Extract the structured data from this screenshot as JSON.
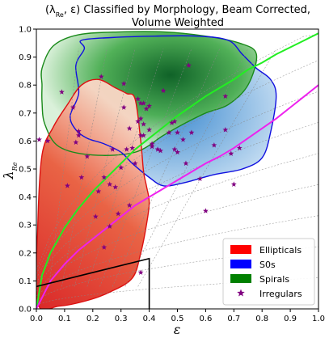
{
  "chart_data": {
    "type": "scatter",
    "title_lines": [
      "(λ_Re, ε) Classified by Morphology, Beam Corrected,",
      "Volume Weighted"
    ],
    "xlabel": "ε",
    "ylabel": "λ_Re",
    "xlim": [
      0.0,
      1.0
    ],
    "ylim": [
      0.0,
      1.0
    ],
    "xticks": [
      "0.0",
      "0.1",
      "0.2",
      "0.3",
      "0.4",
      "0.5",
      "0.6",
      "0.7",
      "0.8",
      "0.9",
      "1.0"
    ],
    "yticks": [
      "0.0",
      "0.1",
      "0.2",
      "0.3",
      "0.4",
      "0.5",
      "0.6",
      "0.7",
      "0.8",
      "0.9",
      "1.0"
    ],
    "legend_position": "lower-right",
    "legend": [
      {
        "label": "Ellipticals",
        "color": "#ff0000",
        "marker": "patch"
      },
      {
        "label": "S0s",
        "color": "#0000ff",
        "marker": "patch"
      },
      {
        "label": "Spirals",
        "color": "#008000",
        "marker": "patch"
      },
      {
        "label": "Irregulars",
        "color": "#800080",
        "marker": "star"
      }
    ],
    "colors": {
      "ellipticals": "#cc1a1a",
      "s0s": "#1f6fb4",
      "spirals": "#147a2c",
      "irregulars": "#800080",
      "green_curve": "#22ee22",
      "magenta_curve": "#ee22ee",
      "slow_rotator_box": "#000000"
    },
    "irregulars": [
      [
        0.01,
        0.605
      ],
      [
        0.09,
        0.775
      ],
      [
        0.11,
        0.44
      ],
      [
        0.13,
        0.72
      ],
      [
        0.14,
        0.595
      ],
      [
        0.15,
        0.635
      ],
      [
        0.15,
        0.62
      ],
      [
        0.18,
        0.545
      ],
      [
        0.16,
        0.47
      ],
      [
        0.21,
        0.33
      ],
      [
        0.22,
        0.42
      ],
      [
        0.24,
        0.47
      ],
      [
        0.23,
        0.83
      ],
      [
        0.24,
        0.22
      ],
      [
        0.26,
        0.295
      ],
      [
        0.26,
        0.445
      ],
      [
        0.27,
        0.57
      ],
      [
        0.28,
        0.435
      ],
      [
        0.29,
        0.34
      ],
      [
        0.3,
        0.505
      ],
      [
        0.31,
        0.805
      ],
      [
        0.31,
        0.72
      ],
      [
        0.32,
        0.57
      ],
      [
        0.33,
        0.37
      ],
      [
        0.33,
        0.645
      ],
      [
        0.34,
        0.575
      ],
      [
        0.35,
        0.52
      ],
      [
        0.36,
        0.75
      ],
      [
        0.36,
        0.67
      ],
      [
        0.37,
        0.735
      ],
      [
        0.37,
        0.68
      ],
      [
        0.38,
        0.66
      ],
      [
        0.38,
        0.62
      ],
      [
        0.38,
        0.735
      ],
      [
        0.37,
        0.62
      ],
      [
        0.39,
        0.715
      ],
      [
        0.4,
        0.725
      ],
      [
        0.4,
        0.64
      ],
      [
        0.41,
        0.58
      ],
      [
        0.43,
        0.57
      ],
      [
        0.44,
        0.565
      ],
      [
        0.45,
        0.78
      ],
      [
        0.47,
        0.63
      ],
      [
        0.48,
        0.665
      ],
      [
        0.49,
        0.67
      ],
      [
        0.49,
        0.57
      ],
      [
        0.5,
        0.56
      ],
      [
        0.5,
        0.63
      ],
      [
        0.52,
        0.605
      ],
      [
        0.53,
        0.52
      ],
      [
        0.54,
        0.87
      ],
      [
        0.55,
        0.63
      ],
      [
        0.58,
        0.465
      ],
      [
        0.6,
        0.35
      ],
      [
        0.63,
        0.585
      ],
      [
        0.67,
        0.76
      ],
      [
        0.67,
        0.64
      ],
      [
        0.69,
        0.555
      ],
      [
        0.7,
        0.445
      ],
      [
        0.72,
        0.575
      ],
      [
        0.41,
        0.59
      ],
      [
        0.37,
        0.13
      ],
      [
        0.04,
        0.6
      ]
    ],
    "spirals_contour": [
      [
        0.02,
        0.8
      ],
      [
        0.02,
        0.86
      ],
      [
        0.06,
        0.94
      ],
      [
        0.15,
        0.98
      ],
      [
        0.3,
        0.99
      ],
      [
        0.45,
        0.99
      ],
      [
        0.6,
        0.975
      ],
      [
        0.72,
        0.95
      ],
      [
        0.78,
        0.91
      ],
      [
        0.75,
        0.8
      ],
      [
        0.68,
        0.73
      ],
      [
        0.6,
        0.7
      ],
      [
        0.52,
        0.66
      ],
      [
        0.45,
        0.62
      ],
      [
        0.35,
        0.56
      ],
      [
        0.2,
        0.55
      ],
      [
        0.08,
        0.58
      ],
      [
        0.03,
        0.66
      ],
      [
        0.02,
        0.74
      ]
    ],
    "s0s_contour": [
      [
        0.12,
        0.69
      ],
      [
        0.15,
        0.77
      ],
      [
        0.14,
        0.87
      ],
      [
        0.17,
        0.93
      ],
      [
        0.16,
        0.96
      ],
      [
        0.27,
        0.97
      ],
      [
        0.42,
        0.975
      ],
      [
        0.57,
        0.975
      ],
      [
        0.68,
        0.96
      ],
      [
        0.73,
        0.91
      ],
      [
        0.78,
        0.86
      ],
      [
        0.83,
        0.82
      ],
      [
        0.85,
        0.76
      ],
      [
        0.83,
        0.63
      ],
      [
        0.8,
        0.54
      ],
      [
        0.73,
        0.5
      ],
      [
        0.63,
        0.48
      ],
      [
        0.52,
        0.45
      ],
      [
        0.45,
        0.44
      ],
      [
        0.4,
        0.47
      ],
      [
        0.34,
        0.52
      ],
      [
        0.3,
        0.56
      ],
      [
        0.24,
        0.59
      ],
      [
        0.18,
        0.61
      ],
      [
        0.14,
        0.64
      ]
    ],
    "ellipticals_contour": [
      [
        0.005,
        0.02
      ],
      [
        0.005,
        0.3
      ],
      [
        0.02,
        0.55
      ],
      [
        0.06,
        0.65
      ],
      [
        0.11,
        0.73
      ],
      [
        0.16,
        0.8
      ],
      [
        0.22,
        0.82
      ],
      [
        0.28,
        0.79
      ],
      [
        0.32,
        0.77
      ],
      [
        0.35,
        0.75
      ],
      [
        0.37,
        0.6
      ],
      [
        0.38,
        0.49
      ],
      [
        0.39,
        0.44
      ],
      [
        0.4,
        0.38
      ],
      [
        0.39,
        0.3
      ],
      [
        0.37,
        0.2
      ],
      [
        0.34,
        0.11
      ],
      [
        0.26,
        0.06
      ],
      [
        0.18,
        0.03
      ],
      [
        0.08,
        0.01
      ]
    ],
    "green_curve": [
      [
        0.0,
        0.0
      ],
      [
        0.02,
        0.12
      ],
      [
        0.05,
        0.2
      ],
      [
        0.1,
        0.29
      ],
      [
        0.15,
        0.36
      ],
      [
        0.2,
        0.42
      ],
      [
        0.25,
        0.47
      ],
      [
        0.3,
        0.52
      ],
      [
        0.35,
        0.57
      ],
      [
        0.4,
        0.61
      ],
      [
        0.45,
        0.65
      ],
      [
        0.5,
        0.69
      ],
      [
        0.55,
        0.725
      ],
      [
        0.6,
        0.76
      ],
      [
        0.65,
        0.79
      ],
      [
        0.7,
        0.82
      ],
      [
        0.75,
        0.855
      ],
      [
        0.8,
        0.88
      ],
      [
        0.85,
        0.91
      ],
      [
        0.9,
        0.935
      ],
      [
        0.95,
        0.96
      ],
      [
        1.0,
        0.985
      ]
    ],
    "magenta_curve": [
      [
        0.0,
        0.0
      ],
      [
        0.05,
        0.1
      ],
      [
        0.1,
        0.16
      ],
      [
        0.15,
        0.21
      ],
      [
        0.2,
        0.25
      ],
      [
        0.25,
        0.29
      ],
      [
        0.3,
        0.33
      ],
      [
        0.35,
        0.37
      ],
      [
        0.4,
        0.4
      ],
      [
        0.45,
        0.43
      ],
      [
        0.5,
        0.46
      ],
      [
        0.55,
        0.49
      ],
      [
        0.6,
        0.52
      ],
      [
        0.65,
        0.545
      ],
      [
        0.7,
        0.575
      ],
      [
        0.75,
        0.61
      ],
      [
        0.8,
        0.645
      ],
      [
        0.85,
        0.68
      ],
      [
        0.9,
        0.72
      ],
      [
        0.95,
        0.76
      ],
      [
        1.0,
        0.8
      ]
    ],
    "slow_rotator_box": [
      [
        0.0,
        0.08
      ],
      [
        0.4,
        0.18
      ],
      [
        0.4,
        0.0
      ]
    ]
  }
}
